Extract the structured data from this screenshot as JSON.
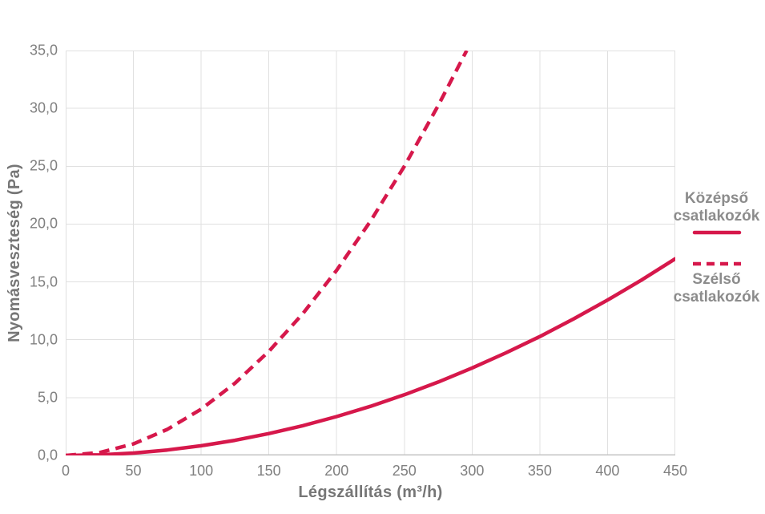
{
  "chart_data": {
    "type": "line",
    "title": "",
    "xlabel": "Légszállítás (m³/h)",
    "ylabel": "Nyomásveszteség (Pa)",
    "xlim": [
      0,
      450
    ],
    "ylim": [
      0,
      35
    ],
    "x_ticks": [
      0,
      50,
      100,
      150,
      200,
      250,
      300,
      350,
      400,
      450
    ],
    "y_ticks": [
      0,
      5,
      10,
      15,
      20,
      25,
      30,
      35
    ],
    "y_tick_labels": [
      "0,0",
      "5,0",
      "10,0",
      "15,0",
      "20,0",
      "25,0",
      "30,0",
      "35,0"
    ],
    "grid": true,
    "legend_position": "right",
    "colors": {
      "series": "#d6184b",
      "grid": "#e0e0e0",
      "plot_border": "#e0e0e0",
      "axis_line": "#c4c4c4",
      "tick_text": "#808080",
      "title_text": "#767676",
      "legend_text": "#8c8c8c"
    },
    "series": [
      {
        "name": "Középső csatlakozók",
        "style": "solid",
        "x": [
          0,
          25,
          50,
          75,
          100,
          125,
          150,
          175,
          200,
          225,
          250,
          275,
          300,
          325,
          350,
          375,
          400,
          425,
          450
        ],
        "y": [
          0,
          0.05,
          0.21,
          0.47,
          0.84,
          1.31,
          1.89,
          2.57,
          3.36,
          4.25,
          5.25,
          6.35,
          7.56,
          8.87,
          10.28,
          11.81,
          13.43,
          15.16,
          17.0
        ]
      },
      {
        "name": "Szélső csatlakozók",
        "style": "dashed",
        "x": [
          0,
          25,
          50,
          75,
          100,
          125,
          150,
          175,
          200,
          225,
          250,
          275,
          296
        ],
        "y": [
          0,
          0.25,
          1.0,
          2.25,
          4.0,
          6.25,
          9.0,
          12.25,
          16.0,
          20.25,
          25.0,
          30.25,
          35.0
        ]
      }
    ]
  }
}
